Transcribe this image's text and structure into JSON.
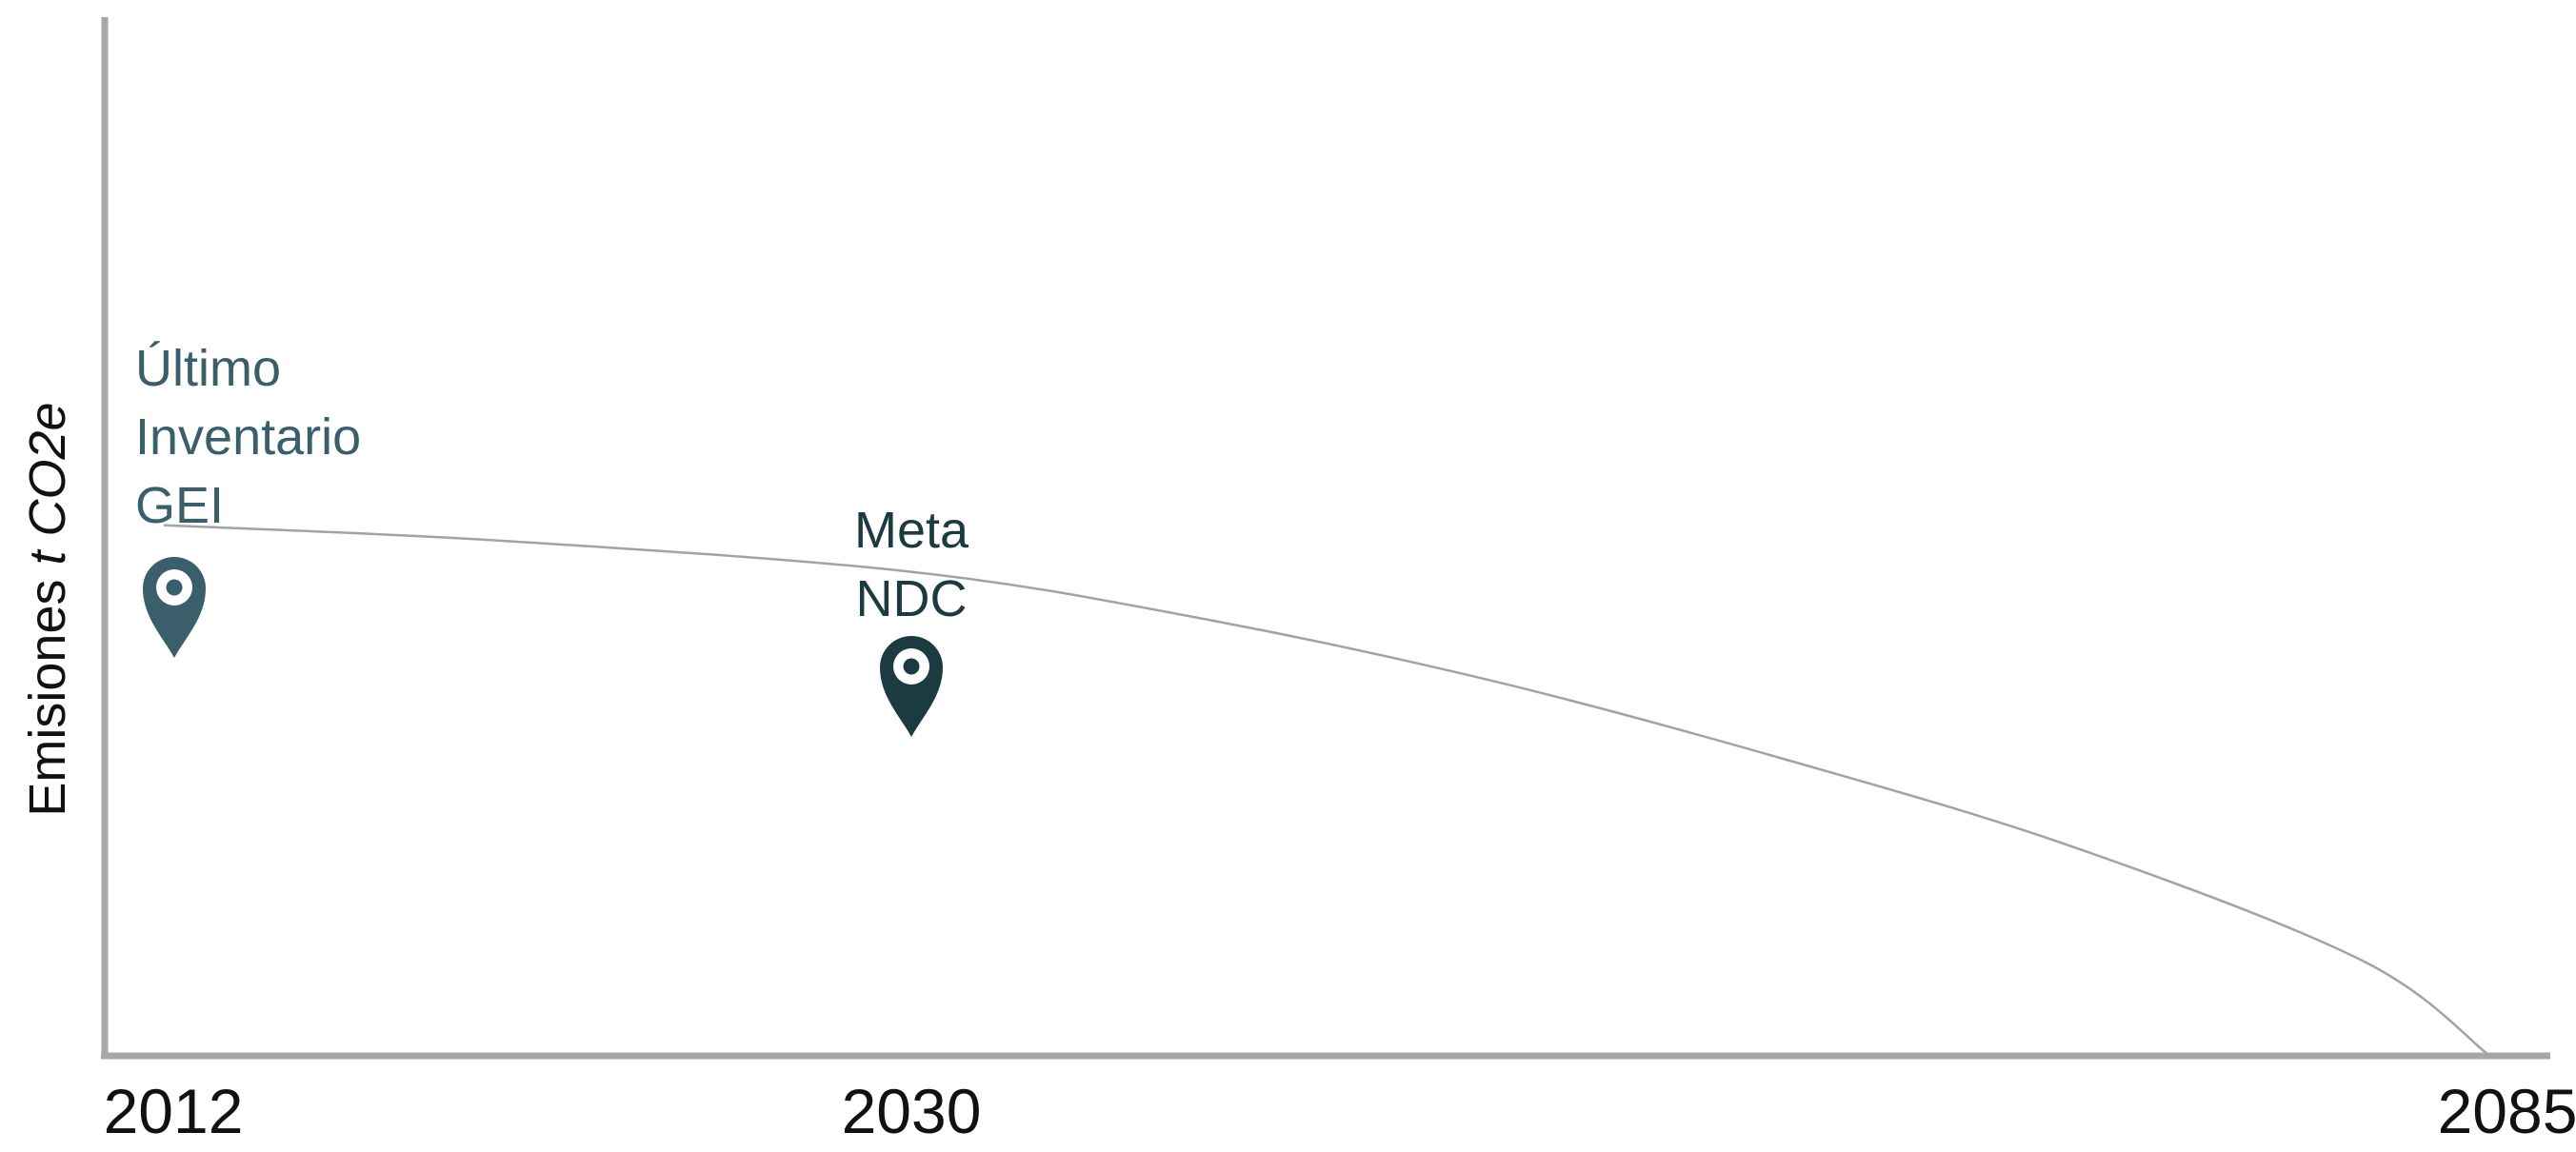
{
  "chart_data": {
    "type": "line",
    "title": "",
    "xlabel": "",
    "ylabel_parts": [
      "Emisiones ",
      "t",
      " CO2e"
    ],
    "ylabel": "Emisiones t CO2e",
    "x_ticks": [
      "2012",
      "2030",
      "2085"
    ],
    "xlim": [
      2012,
      2085
    ],
    "ylim": [
      0,
      1
    ],
    "grid": false,
    "series": [
      {
        "color": "#a3a3a3",
        "x": [
          2012,
          2020,
          2030,
          2040,
          2050,
          2060,
          2070,
          2080,
          2085
        ],
        "y": [
          0.51,
          0.495,
          0.465,
          0.42,
          0.36,
          0.285,
          0.2,
          0.09,
          0.0
        ]
      }
    ],
    "annotations": [
      {
        "lines": [
          "Último",
          "Inventario",
          "GEI"
        ],
        "x": 2012,
        "icon": "map-pin-icon",
        "color": "#3a5f6b"
      },
      {
        "lines": [
          "Meta",
          "NDC"
        ],
        "x": 2030,
        "icon": "map-pin-icon",
        "color": "#1c3b40"
      }
    ]
  }
}
